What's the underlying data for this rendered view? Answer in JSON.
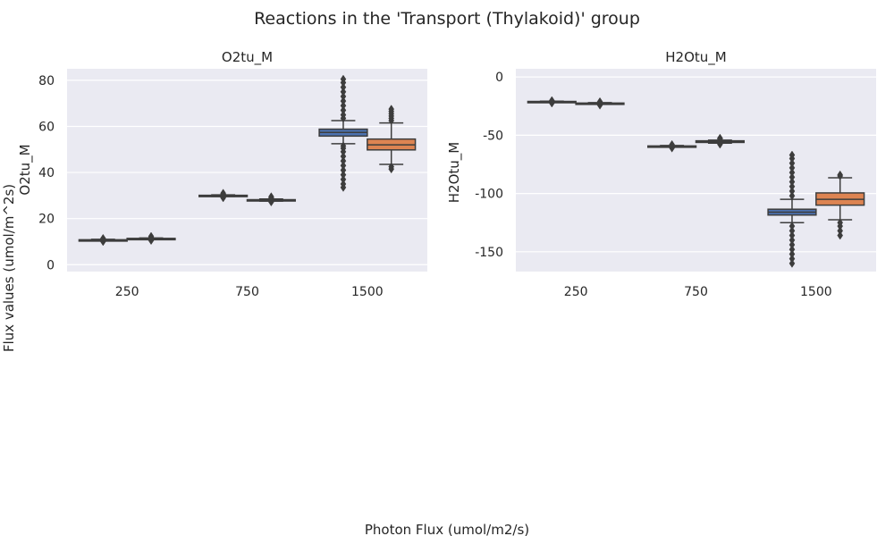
{
  "figure": {
    "suptitle": "Reactions in the 'Transport (Thylakoid)' group",
    "supxlabel": "Photon Flux (umol/m2/s)",
    "supylabel": "Flux values (umol/m^2s)"
  },
  "colors": {
    "axes_bg": "#eaeaf2",
    "grid": "#ffffff",
    "blue": "#4c72b0",
    "orange": "#dd8452",
    "line": "#3d3d3d",
    "text": "#262626"
  },
  "chart_data": [
    {
      "type": "box",
      "title": "O2tu_M",
      "ylabel": "O2tu_M",
      "xlabel": "",
      "categories": [
        "250",
        "750",
        "1500"
      ],
      "ylim": [
        -3,
        85
      ],
      "yticks": [
        0,
        20,
        40,
        60,
        80
      ],
      "grid": true,
      "boxes": [
        {
          "category": "250",
          "hue": 0,
          "q1": 10.6,
          "median": 10.7,
          "q3": 10.8,
          "whislo": 10.4,
          "whishi": 11.0,
          "fliers": [
            10.0,
            10.2,
            11.2,
            11.4
          ]
        },
        {
          "category": "250",
          "hue": 1,
          "q1": 11.2,
          "median": 11.3,
          "q3": 11.4,
          "whislo": 11.0,
          "whishi": 11.6,
          "fliers": [
            10.5,
            10.8,
            11.9,
            12.3
          ]
        },
        {
          "category": "750",
          "hue": 0,
          "q1": 29.8,
          "median": 30.0,
          "q3": 30.1,
          "whislo": 29.6,
          "whishi": 30.3,
          "fliers": [
            29.0,
            29.3,
            30.6,
            31.0
          ]
        },
        {
          "category": "750",
          "hue": 1,
          "q1": 27.8,
          "median": 28.0,
          "q3": 28.2,
          "whislo": 27.6,
          "whishi": 28.5,
          "fliers": [
            27.2,
            29.0,
            29.5
          ]
        },
        {
          "category": "1500",
          "hue": 0,
          "q1": 55.8,
          "median": 57.4,
          "q3": 58.8,
          "whislo": 52.5,
          "whishi": 62.5,
          "fliers": [
            33.5,
            35,
            37,
            39,
            41,
            43,
            45,
            47,
            49,
            50.5,
            51.5,
            63.5,
            65,
            67,
            69,
            71,
            73,
            75,
            77,
            79,
            80.5
          ]
        },
        {
          "category": "1500",
          "hue": 1,
          "q1": 49.8,
          "median": 52.0,
          "q3": 54.5,
          "whislo": 43.5,
          "whishi": 61.5,
          "fliers": [
            41.5,
            42.5,
            62.5,
            63.5,
            64.5,
            65.5,
            66.5,
            67.5
          ]
        }
      ]
    },
    {
      "type": "box",
      "title": "H2Otu_M",
      "ylabel": "H2Otu_M",
      "xlabel": "",
      "categories": [
        "250",
        "750",
        "1500"
      ],
      "ylim": [
        -167,
        7
      ],
      "yticks": [
        0,
        -50,
        -100,
        -150
      ],
      "grid": true,
      "boxes": [
        {
          "category": "250",
          "hue": 0,
          "q1": -21.5,
          "median": -21.3,
          "q3": -21.0,
          "whislo": -21.8,
          "whishi": -20.8,
          "fliers": [
            -22.5,
            -20.2
          ]
        },
        {
          "category": "250",
          "hue": 1,
          "q1": -23.0,
          "median": -22.7,
          "q3": -22.4,
          "whislo": -23.4,
          "whishi": -22.0,
          "fliers": [
            -24.2,
            -21.2
          ]
        },
        {
          "category": "750",
          "hue": 0,
          "q1": -59.8,
          "median": -59.5,
          "q3": -59.2,
          "whislo": -60.3,
          "whishi": -58.8,
          "fliers": [
            -61.0,
            -58.0
          ]
        },
        {
          "category": "750",
          "hue": 1,
          "q1": -56.2,
          "median": -55.5,
          "q3": -54.8,
          "whislo": -56.8,
          "whishi": -54.2,
          "fliers": [
            -57.8,
            -53.2,
            -52.5
          ]
        },
        {
          "category": "1500",
          "hue": 0,
          "q1": -118.5,
          "median": -116.0,
          "q3": -113.5,
          "whislo": -125.0,
          "whishi": -105.0,
          "fliers": [
            -160,
            -156,
            -152,
            -148,
            -144,
            -140,
            -136,
            -132,
            -128,
            -102,
            -98,
            -94,
            -90,
            -86,
            -82,
            -78,
            -74,
            -70,
            -67
          ]
        },
        {
          "category": "1500",
          "hue": 1,
          "q1": -110.0,
          "median": -105.0,
          "q3": -99.5,
          "whislo": -122.5,
          "whishi": -86.5,
          "fliers": [
            -136,
            -132,
            -128,
            -125,
            -85,
            -84
          ]
        }
      ]
    }
  ]
}
